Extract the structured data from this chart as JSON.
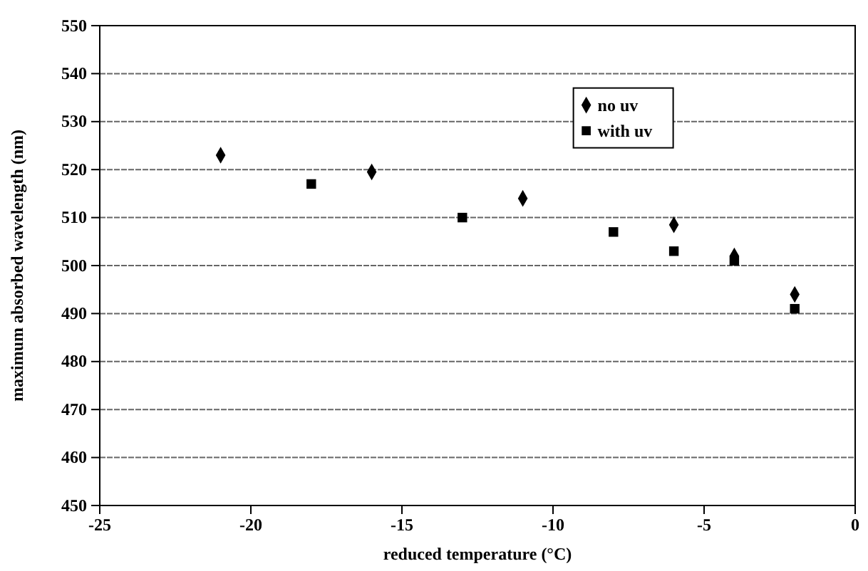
{
  "chart_data": {
    "type": "scatter",
    "xlabel": "reduced temperature (°C)",
    "ylabel": "maximum absorbed wavelength (nm)",
    "xlim": [
      -25,
      0
    ],
    "xticks": [
      -25,
      -20,
      -15,
      -10,
      -5,
      0
    ],
    "ylim": [
      450,
      550
    ],
    "yticks": [
      450,
      460,
      470,
      480,
      490,
      500,
      510,
      520,
      530,
      540,
      550
    ],
    "grid": "y",
    "legend": "top right",
    "series": [
      {
        "name": "no uv",
        "color": "#000000",
        "marker": "diamond",
        "x": [
          -21,
          -16,
          -11,
          -6,
          -4,
          -2
        ],
        "values": [
          523,
          519.5,
          514,
          508.5,
          502,
          494
        ]
      },
      {
        "name": "with uv",
        "color": "#000000",
        "marker": "square",
        "x": [
          -18,
          -13,
          -8,
          -6,
          -4,
          -2
        ],
        "values": [
          517,
          510,
          507,
          503,
          501,
          491
        ]
      }
    ]
  }
}
